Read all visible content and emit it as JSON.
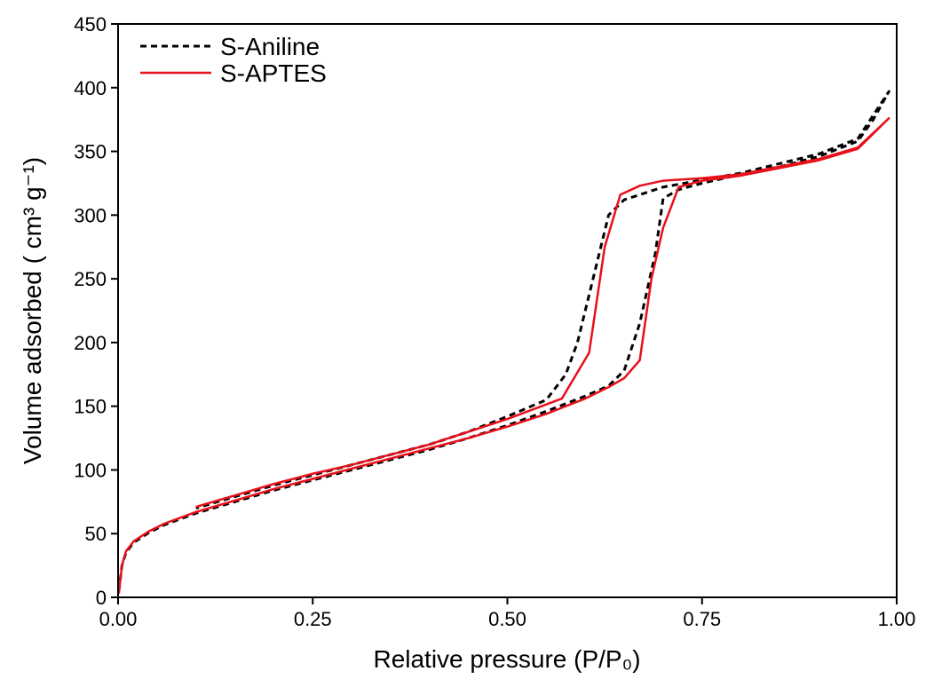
{
  "chart_data": {
    "type": "line",
    "xlabel": "Relative pressure (P/P₀)",
    "ylabel": "Volume adsorbed ( cm³ g⁻¹)",
    "xlim": [
      0,
      1
    ],
    "ylim": [
      0,
      450
    ],
    "xticks": [
      {
        "value": 0,
        "label": "0.00"
      },
      {
        "value": 0.25,
        "label": "0.25"
      },
      {
        "value": 0.5,
        "label": "0.50"
      },
      {
        "value": 0.75,
        "label": "0.75"
      },
      {
        "value": 1,
        "label": "1.00"
      }
    ],
    "yticks": [
      0,
      50,
      100,
      150,
      200,
      250,
      300,
      350,
      400,
      450
    ],
    "legend": "upper left",
    "series": [
      {
        "name": "S-Aniline",
        "color": "#000000",
        "dash": true,
        "x": [
          0.001,
          0.005,
          0.01,
          0.02,
          0.04,
          0.06,
          0.1,
          0.15,
          0.2,
          0.25,
          0.3,
          0.35,
          0.4,
          0.45,
          0.5,
          0.55,
          0.6,
          0.63,
          0.65,
          0.67,
          0.69,
          0.7,
          0.72,
          0.75,
          0.8,
          0.85,
          0.9,
          0.95,
          0.97,
          0.99,
          0.95,
          0.9,
          0.8,
          0.7,
          0.65,
          0.63,
          0.61,
          0.59,
          0.575,
          0.55,
          0.5,
          0.45,
          0.4,
          0.35,
          0.3,
          0.25,
          0.2,
          0.15,
          0.1
        ],
        "values": [
          5,
          25,
          35,
          43,
          51,
          57,
          66,
          75,
          84,
          92,
          100,
          108,
          116,
          125,
          135,
          146,
          158,
          166,
          178,
          215,
          270,
          313,
          320,
          325,
          332,
          338,
          346,
          358,
          375,
          397,
          360,
          348,
          333,
          322,
          312,
          300,
          250,
          200,
          175,
          155,
          142,
          130,
          120,
          112,
          104,
          96,
          88,
          79,
          70
        ]
      },
      {
        "name": "S-APTES",
        "color": "#e8101a",
        "dash": false,
        "x": [
          0.001,
          0.005,
          0.01,
          0.02,
          0.04,
          0.06,
          0.1,
          0.15,
          0.2,
          0.25,
          0.3,
          0.35,
          0.4,
          0.45,
          0.5,
          0.55,
          0.6,
          0.63,
          0.65,
          0.67,
          0.685,
          0.7,
          0.72,
          0.75,
          0.8,
          0.85,
          0.9,
          0.95,
          0.99,
          0.95,
          0.9,
          0.8,
          0.75,
          0.7,
          0.67,
          0.645,
          0.625,
          0.605,
          0.57,
          0.5,
          0.45,
          0.4,
          0.35,
          0.3,
          0.25,
          0.2,
          0.15,
          0.1
        ],
        "values": [
          3,
          25,
          36,
          44,
          52,
          58,
          67,
          76,
          85,
          93,
          101,
          109,
          117,
          125,
          134,
          144,
          156,
          165,
          172,
          186,
          250,
          290,
          322,
          327,
          331,
          337,
          343,
          352,
          376,
          353,
          344,
          332,
          329,
          327,
          323,
          316,
          275,
          192,
          156,
          140,
          130,
          120,
          112,
          104,
          97,
          89,
          80,
          71
        ]
      }
    ]
  }
}
